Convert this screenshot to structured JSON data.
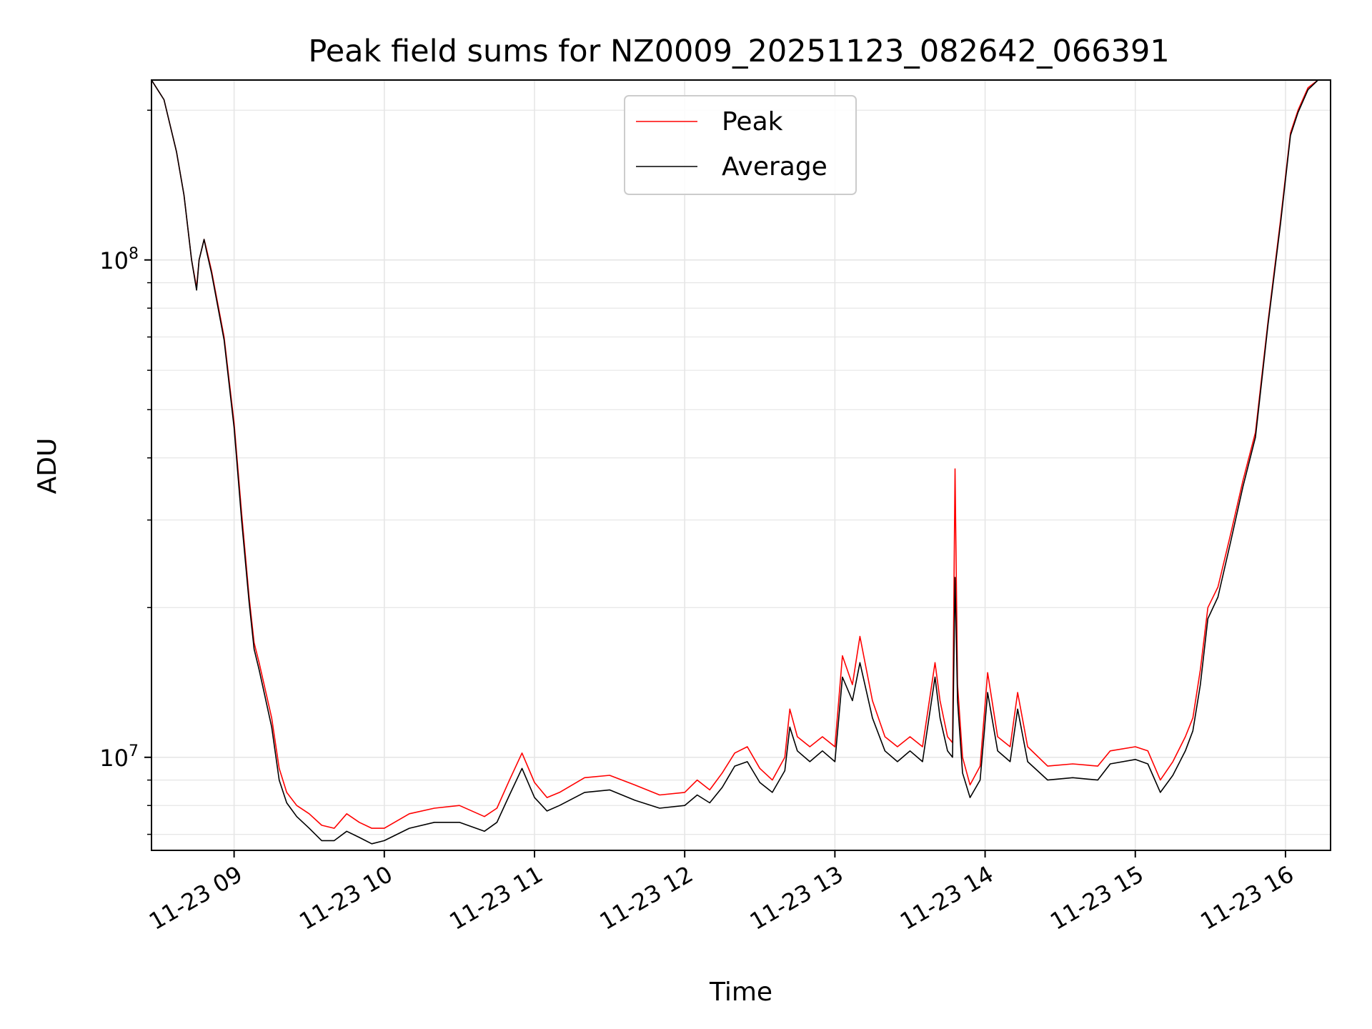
{
  "chart_data": {
    "type": "line",
    "title": "Peak field sums for NZ0009_20251123_082642_066391",
    "xlabel": "Time",
    "ylabel": "ADU",
    "y_scale": "log",
    "ylim": [
      6500000,
      230000000
    ],
    "xlim": [
      "11-23 08:27",
      "11-23 16:18"
    ],
    "x_ticks": [
      {
        "t": "11-23 09:00",
        "label": "11-23 09"
      },
      {
        "t": "11-23 10:00",
        "label": "11-23 10"
      },
      {
        "t": "11-23 11:00",
        "label": "11-23 11"
      },
      {
        "t": "11-23 12:00",
        "label": "11-23 12"
      },
      {
        "t": "11-23 13:00",
        "label": "11-23 13"
      },
      {
        "t": "11-23 14:00",
        "label": "11-23 14"
      },
      {
        "t": "11-23 15:00",
        "label": "11-23 15"
      },
      {
        "t": "11-23 16:00",
        "label": "11-23 16"
      }
    ],
    "y_ticks": [
      {
        "value": 10000000,
        "base": "10",
        "exp": "7"
      },
      {
        "value": 100000000,
        "base": "10",
        "exp": "8"
      }
    ],
    "grid": true,
    "legend": "top-center",
    "series": [
      {
        "name": "Peak",
        "color": "#ff0000",
        "points": [
          [
            "11-23 08:27",
            230000000
          ],
          [
            "11-23 08:32",
            210000000
          ],
          [
            "11-23 08:37",
            165000000
          ],
          [
            "11-23 08:40",
            135000000
          ],
          [
            "11-23 08:43",
            100000000
          ],
          [
            "11-23 08:45",
            88000000
          ],
          [
            "11-23 08:46",
            100000000
          ],
          [
            "11-23 08:48",
            110000000
          ],
          [
            "11-23 08:49",
            105000000
          ],
          [
            "11-23 08:51",
            95000000
          ],
          [
            "11-23 08:56",
            70000000
          ],
          [
            "11-23 09:00",
            47000000
          ],
          [
            "11-23 09:03",
            31000000
          ],
          [
            "11-23 09:06",
            21000000
          ],
          [
            "11-23 09:08",
            17000000
          ],
          [
            "11-23 09:10",
            15500000
          ],
          [
            "11-23 09:12",
            14000000
          ],
          [
            "11-23 09:15",
            12000000
          ],
          [
            "11-23 09:18",
            9500000
          ],
          [
            "11-23 09:21",
            8500000
          ],
          [
            "11-23 09:25",
            8000000
          ],
          [
            "11-23 09:30",
            7700000
          ],
          [
            "11-23 09:35",
            7300000
          ],
          [
            "11-23 09:40",
            7200000
          ],
          [
            "11-23 09:45",
            7700000
          ],
          [
            "11-23 09:50",
            7400000
          ],
          [
            "11-23 09:55",
            7200000
          ],
          [
            "11-23 10:00",
            7200000
          ],
          [
            "11-23 10:10",
            7700000
          ],
          [
            "11-23 10:20",
            7900000
          ],
          [
            "11-23 10:30",
            8000000
          ],
          [
            "11-23 10:40",
            7600000
          ],
          [
            "11-23 10:45",
            7900000
          ],
          [
            "11-23 10:50",
            9000000
          ],
          [
            "11-23 10:55",
            10200000
          ],
          [
            "11-23 11:00",
            8900000
          ],
          [
            "11-23 11:05",
            8300000
          ],
          [
            "11-23 11:10",
            8500000
          ],
          [
            "11-23 11:20",
            9100000
          ],
          [
            "11-23 11:30",
            9200000
          ],
          [
            "11-23 11:40",
            8800000
          ],
          [
            "11-23 11:50",
            8400000
          ],
          [
            "11-23 12:00",
            8500000
          ],
          [
            "11-23 12:05",
            9000000
          ],
          [
            "11-23 12:10",
            8600000
          ],
          [
            "11-23 12:15",
            9300000
          ],
          [
            "11-23 12:20",
            10200000
          ],
          [
            "11-23 12:25",
            10500000
          ],
          [
            "11-23 12:30",
            9500000
          ],
          [
            "11-23 12:35",
            9000000
          ],
          [
            "11-23 12:40",
            10000000
          ],
          [
            "11-23 12:42",
            12500000
          ],
          [
            "11-23 12:45",
            11000000
          ],
          [
            "11-23 12:50",
            10500000
          ],
          [
            "11-23 12:55",
            11000000
          ],
          [
            "11-23 13:00",
            10500000
          ],
          [
            "11-23 13:03",
            16000000
          ],
          [
            "11-23 13:07",
            14000000
          ],
          [
            "11-23 13:10",
            17500000
          ],
          [
            "11-23 13:15",
            13000000
          ],
          [
            "11-23 13:20",
            11000000
          ],
          [
            "11-23 13:25",
            10500000
          ],
          [
            "11-23 13:30",
            11000000
          ],
          [
            "11-23 13:35",
            10500000
          ],
          [
            "11-23 13:40",
            15500000
          ],
          [
            "11-23 13:42",
            13000000
          ],
          [
            "11-23 13:45",
            11000000
          ],
          [
            "11-23 13:47",
            10700000
          ],
          [
            "11-23 13:48",
            38000000
          ],
          [
            "11-23 13:49",
            14000000
          ],
          [
            "11-23 13:51",
            10000000
          ],
          [
            "11-23 13:54",
            8800000
          ],
          [
            "11-23 13:58",
            9600000
          ],
          [
            "11-23 14:01",
            14800000
          ],
          [
            "11-23 14:05",
            11000000
          ],
          [
            "11-23 14:10",
            10500000
          ],
          [
            "11-23 14:13",
            13500000
          ],
          [
            "11-23 14:17",
            10500000
          ],
          [
            "11-23 14:25",
            9600000
          ],
          [
            "11-23 14:35",
            9700000
          ],
          [
            "11-23 14:45",
            9600000
          ],
          [
            "11-23 14:50",
            10300000
          ],
          [
            "11-23 15:00",
            10500000
          ],
          [
            "11-23 15:05",
            10300000
          ],
          [
            "11-23 15:10",
            9000000
          ],
          [
            "11-23 15:15",
            9800000
          ],
          [
            "11-23 15:20",
            11000000
          ],
          [
            "11-23 15:23",
            12000000
          ],
          [
            "11-23 15:26",
            15000000
          ],
          [
            "11-23 15:29",
            20000000
          ],
          [
            "11-23 15:33",
            22000000
          ],
          [
            "11-23 15:38",
            28000000
          ],
          [
            "11-23 15:43",
            36000000
          ],
          [
            "11-23 15:48",
            45000000
          ],
          [
            "11-23 15:53",
            75000000
          ],
          [
            "11-23 15:58",
            120000000
          ],
          [
            "11-23 16:02",
            180000000
          ],
          [
            "11-23 16:05",
            200000000
          ],
          [
            "11-23 16:09",
            222000000
          ],
          [
            "11-23 16:13",
            230000000
          ]
        ]
      },
      {
        "name": "Average",
        "color": "#000000",
        "points": [
          [
            "11-23 08:27",
            230000000
          ],
          [
            "11-23 08:32",
            210000000
          ],
          [
            "11-23 08:37",
            165000000
          ],
          [
            "11-23 08:40",
            135000000
          ],
          [
            "11-23 08:43",
            100000000
          ],
          [
            "11-23 08:45",
            87000000
          ],
          [
            "11-23 08:46",
            100000000
          ],
          [
            "11-23 08:48",
            110000000
          ],
          [
            "11-23 08:49",
            104000000
          ],
          [
            "11-23 08:51",
            94000000
          ],
          [
            "11-23 08:56",
            69000000
          ],
          [
            "11-23 09:00",
            46000000
          ],
          [
            "11-23 09:03",
            30000000
          ],
          [
            "11-23 09:06",
            20500000
          ],
          [
            "11-23 09:08",
            16500000
          ],
          [
            "11-23 09:10",
            15000000
          ],
          [
            "11-23 09:12",
            13500000
          ],
          [
            "11-23 09:15",
            11500000
          ],
          [
            "11-23 09:18",
            9000000
          ],
          [
            "11-23 09:21",
            8100000
          ],
          [
            "11-23 09:25",
            7600000
          ],
          [
            "11-23 09:30",
            7200000
          ],
          [
            "11-23 09:35",
            6800000
          ],
          [
            "11-23 09:40",
            6800000
          ],
          [
            "11-23 09:45",
            7100000
          ],
          [
            "11-23 09:50",
            6900000
          ],
          [
            "11-23 09:55",
            6700000
          ],
          [
            "11-23 10:00",
            6800000
          ],
          [
            "11-23 10:10",
            7200000
          ],
          [
            "11-23 10:20",
            7400000
          ],
          [
            "11-23 10:30",
            7400000
          ],
          [
            "11-23 10:40",
            7100000
          ],
          [
            "11-23 10:45",
            7400000
          ],
          [
            "11-23 10:50",
            8400000
          ],
          [
            "11-23 10:55",
            9500000
          ],
          [
            "11-23 11:00",
            8300000
          ],
          [
            "11-23 11:05",
            7800000
          ],
          [
            "11-23 11:10",
            8000000
          ],
          [
            "11-23 11:20",
            8500000
          ],
          [
            "11-23 11:30",
            8600000
          ],
          [
            "11-23 11:40",
            8200000
          ],
          [
            "11-23 11:50",
            7900000
          ],
          [
            "11-23 12:00",
            8000000
          ],
          [
            "11-23 12:05",
            8400000
          ],
          [
            "11-23 12:10",
            8100000
          ],
          [
            "11-23 12:15",
            8700000
          ],
          [
            "11-23 12:20",
            9600000
          ],
          [
            "11-23 12:25",
            9800000
          ],
          [
            "11-23 12:30",
            8900000
          ],
          [
            "11-23 12:35",
            8500000
          ],
          [
            "11-23 12:40",
            9400000
          ],
          [
            "11-23 12:42",
            11500000
          ],
          [
            "11-23 12:45",
            10300000
          ],
          [
            "11-23 12:50",
            9800000
          ],
          [
            "11-23 12:55",
            10300000
          ],
          [
            "11-23 13:00",
            9800000
          ],
          [
            "11-23 13:03",
            14500000
          ],
          [
            "11-23 13:07",
            13000000
          ],
          [
            "11-23 13:10",
            15500000
          ],
          [
            "11-23 13:15",
            12000000
          ],
          [
            "11-23 13:20",
            10300000
          ],
          [
            "11-23 13:25",
            9800000
          ],
          [
            "11-23 13:30",
            10300000
          ],
          [
            "11-23 13:35",
            9800000
          ],
          [
            "11-23 13:40",
            14500000
          ],
          [
            "11-23 13:42",
            12000000
          ],
          [
            "11-23 13:45",
            10300000
          ],
          [
            "11-23 13:47",
            10000000
          ],
          [
            "11-23 13:48",
            23000000
          ],
          [
            "11-23 13:49",
            13000000
          ],
          [
            "11-23 13:51",
            9300000
          ],
          [
            "11-23 13:54",
            8300000
          ],
          [
            "11-23 13:58",
            9000000
          ],
          [
            "11-23 14:01",
            13500000
          ],
          [
            "11-23 14:05",
            10300000
          ],
          [
            "11-23 14:10",
            9800000
          ],
          [
            "11-23 14:13",
            12500000
          ],
          [
            "11-23 14:17",
            9800000
          ],
          [
            "11-23 14:25",
            9000000
          ],
          [
            "11-23 14:35",
            9100000
          ],
          [
            "11-23 14:45",
            9000000
          ],
          [
            "11-23 14:50",
            9700000
          ],
          [
            "11-23 15:00",
            9900000
          ],
          [
            "11-23 15:05",
            9700000
          ],
          [
            "11-23 15:10",
            8500000
          ],
          [
            "11-23 15:15",
            9200000
          ],
          [
            "11-23 15:20",
            10300000
          ],
          [
            "11-23 15:23",
            11300000
          ],
          [
            "11-23 15:26",
            14000000
          ],
          [
            "11-23 15:29",
            19000000
          ],
          [
            "11-23 15:33",
            21000000
          ],
          [
            "11-23 15:38",
            27000000
          ],
          [
            "11-23 15:43",
            35000000
          ],
          [
            "11-23 15:48",
            44000000
          ],
          [
            "11-23 15:53",
            74000000
          ],
          [
            "11-23 15:58",
            118000000
          ],
          [
            "11-23 16:02",
            178000000
          ],
          [
            "11-23 16:05",
            198000000
          ],
          [
            "11-23 16:09",
            220000000
          ],
          [
            "11-23 16:13",
            230000000
          ]
        ]
      }
    ]
  }
}
